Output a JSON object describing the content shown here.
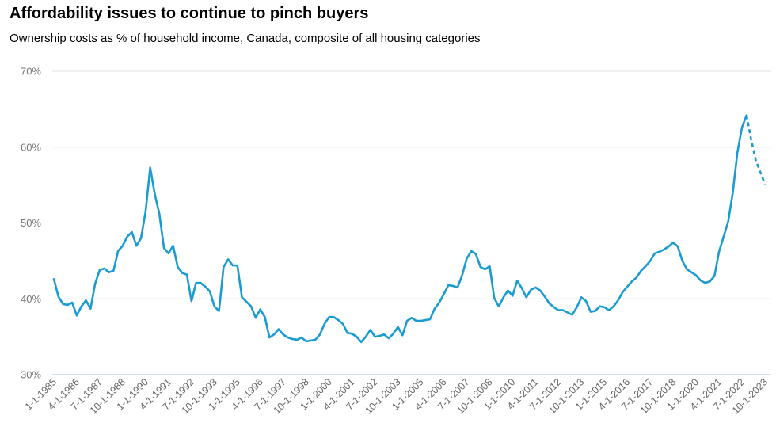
{
  "header": {
    "title": "Affordability issues to continue to pinch buyers",
    "subtitle": "Ownership costs as % of household income, Canada, composite of all housing categories"
  },
  "colors": {
    "line": "#1a9bd1",
    "grid": "#e0e0e0",
    "baseline": "#a7c8d8",
    "tick_text": "#666666"
  },
  "chart_data": {
    "type": "line",
    "title": "Affordability issues to continue to pinch buyers",
    "subtitle": "Ownership costs as % of household income, Canada, composite of all housing categories",
    "xlabel": "",
    "ylabel": "",
    "ylim": [
      30,
      70
    ],
    "yticks": [
      "30%",
      "40%",
      "50%",
      "60%",
      "70%"
    ],
    "ytick_values": [
      30,
      40,
      50,
      60,
      70
    ],
    "grid": true,
    "legend": "none",
    "x_tick_labels": [
      "1-1-1985",
      "4-1-1986",
      "7-1-1987",
      "10-1-1988",
      "1-1-1990",
      "4-1-1991",
      "7-1-1992",
      "10-1-1993",
      "1-1-1995",
      "4-1-1996",
      "7-1-1997",
      "10-1-1998",
      "1-1-2000",
      "4-1-2001",
      "7-1-2002",
      "10-1-2003",
      "1-1-2005",
      "4-1-2006",
      "7-1-2007",
      "10-1-2008",
      "1-1-2010",
      "4-1-2011",
      "7-1-2012",
      "10-1-2013",
      "1-1-2015",
      "4-1-2016",
      "7-1-2017",
      "10-1-2018",
      "1-1-2020",
      "4-1-2021",
      "7-1-2022",
      "10-1-2023"
    ],
    "x_start": "1-1-1985",
    "x_end": "10-1-2023",
    "series": [
      {
        "style": "solid",
        "points": [
          [
            "1-1-1985",
            42.6
          ],
          [
            "4-1-1985",
            40.3
          ],
          [
            "7-1-1985",
            39.3
          ],
          [
            "10-1-1985",
            39.2
          ],
          [
            "1-1-1986",
            39.5
          ],
          [
            "4-1-1986",
            37.8
          ],
          [
            "7-1-1986",
            39.0
          ],
          [
            "10-1-1986",
            39.8
          ],
          [
            "1-1-1987",
            38.7
          ],
          [
            "4-1-1987",
            42.0
          ],
          [
            "7-1-1987",
            43.8
          ],
          [
            "10-1-1987",
            44.0
          ],
          [
            "1-1-1988",
            43.5
          ],
          [
            "4-1-1988",
            43.7
          ],
          [
            "7-1-1988",
            46.3
          ],
          [
            "10-1-1988",
            47.0
          ],
          [
            "1-1-1989",
            48.2
          ],
          [
            "4-1-1989",
            48.8
          ],
          [
            "7-1-1989",
            47.0
          ],
          [
            "10-1-1989",
            48.0
          ],
          [
            "1-1-1990",
            51.5
          ],
          [
            "4-1-1990",
            57.3
          ],
          [
            "7-1-1990",
            53.8
          ],
          [
            "10-1-1990",
            51.2
          ],
          [
            "1-1-1991",
            46.7
          ],
          [
            "4-1-1991",
            46.0
          ],
          [
            "7-1-1991",
            47.0
          ],
          [
            "10-1-1991",
            44.2
          ],
          [
            "1-1-1992",
            43.4
          ],
          [
            "4-1-1992",
            43.2
          ],
          [
            "7-1-1992",
            39.7
          ],
          [
            "10-1-1992",
            42.1
          ],
          [
            "1-1-1993",
            42.1
          ],
          [
            "4-1-1993",
            41.6
          ],
          [
            "7-1-1993",
            41.0
          ],
          [
            "10-1-1993",
            39.0
          ],
          [
            "1-1-1994",
            38.4
          ],
          [
            "4-1-1994",
            44.2
          ],
          [
            "7-1-1994",
            45.2
          ],
          [
            "10-1-1994",
            44.4
          ],
          [
            "1-1-1995",
            44.4
          ],
          [
            "4-1-1995",
            40.2
          ],
          [
            "7-1-1995",
            39.6
          ],
          [
            "10-1-1995",
            39.0
          ],
          [
            "1-1-1996",
            37.5
          ],
          [
            "4-1-1996",
            38.6
          ],
          [
            "7-1-1996",
            37.6
          ],
          [
            "10-1-1996",
            34.9
          ],
          [
            "1-1-1997",
            35.3
          ],
          [
            "4-1-1997",
            36.0
          ],
          [
            "7-1-1997",
            35.3
          ],
          [
            "10-1-1997",
            34.9
          ],
          [
            "1-1-1998",
            34.7
          ],
          [
            "4-1-1998",
            34.6
          ],
          [
            "7-1-1998",
            34.9
          ],
          [
            "10-1-1998",
            34.4
          ],
          [
            "1-1-1999",
            34.5
          ],
          [
            "4-1-1999",
            34.6
          ],
          [
            "7-1-1999",
            35.3
          ],
          [
            "10-1-1999",
            36.7
          ],
          [
            "1-1-2000",
            37.6
          ],
          [
            "4-1-2000",
            37.6
          ],
          [
            "7-1-2000",
            37.2
          ],
          [
            "10-1-2000",
            36.7
          ],
          [
            "1-1-2001",
            35.5
          ],
          [
            "4-1-2001",
            35.4
          ],
          [
            "7-1-2001",
            35.0
          ],
          [
            "10-1-2001",
            34.3
          ],
          [
            "1-1-2002",
            35.0
          ],
          [
            "4-1-2002",
            35.9
          ],
          [
            "7-1-2002",
            35.0
          ],
          [
            "10-1-2002",
            35.1
          ],
          [
            "1-1-2003",
            35.3
          ],
          [
            "4-1-2003",
            34.8
          ],
          [
            "7-1-2003",
            35.4
          ],
          [
            "10-1-2003",
            36.3
          ],
          [
            "1-1-2004",
            35.2
          ],
          [
            "4-1-2004",
            37.1
          ],
          [
            "7-1-2004",
            37.5
          ],
          [
            "10-1-2004",
            37.1
          ],
          [
            "1-1-2005",
            37.1
          ],
          [
            "4-1-2005",
            37.2
          ],
          [
            "7-1-2005",
            37.3
          ],
          [
            "10-1-2005",
            38.7
          ],
          [
            "1-1-2006",
            39.5
          ],
          [
            "4-1-2006",
            40.6
          ],
          [
            "7-1-2006",
            41.8
          ],
          [
            "10-1-2006",
            41.7
          ],
          [
            "1-1-2007",
            41.5
          ],
          [
            "4-1-2007",
            43.1
          ],
          [
            "7-1-2007",
            45.3
          ],
          [
            "10-1-2007",
            46.3
          ],
          [
            "1-1-2008",
            45.9
          ],
          [
            "4-1-2008",
            44.2
          ],
          [
            "7-1-2008",
            43.9
          ],
          [
            "10-1-2008",
            44.3
          ],
          [
            "1-1-2009",
            40.1
          ],
          [
            "4-1-2009",
            39.0
          ],
          [
            "7-1-2009",
            40.2
          ],
          [
            "10-1-2009",
            41.1
          ],
          [
            "1-1-2010",
            40.4
          ],
          [
            "4-1-2010",
            42.4
          ],
          [
            "7-1-2010",
            41.4
          ],
          [
            "10-1-2010",
            40.2
          ],
          [
            "1-1-2011",
            41.2
          ],
          [
            "4-1-2011",
            41.5
          ],
          [
            "7-1-2011",
            41.1
          ],
          [
            "10-1-2011",
            40.3
          ],
          [
            "1-1-2012",
            39.4
          ],
          [
            "4-1-2012",
            38.9
          ],
          [
            "7-1-2012",
            38.5
          ],
          [
            "10-1-2012",
            38.5
          ],
          [
            "1-1-2013",
            38.2
          ],
          [
            "4-1-2013",
            37.9
          ],
          [
            "7-1-2013",
            38.9
          ],
          [
            "10-1-2013",
            40.2
          ],
          [
            "1-1-2014",
            39.7
          ],
          [
            "4-1-2014",
            38.3
          ],
          [
            "7-1-2014",
            38.4
          ],
          [
            "10-1-2014",
            39.0
          ],
          [
            "1-1-2015",
            38.9
          ],
          [
            "4-1-2015",
            38.5
          ],
          [
            "7-1-2015",
            39.0
          ],
          [
            "10-1-2015",
            39.8
          ],
          [
            "1-1-2016",
            40.9
          ],
          [
            "4-1-2016",
            41.6
          ],
          [
            "7-1-2016",
            42.3
          ],
          [
            "10-1-2016",
            42.8
          ],
          [
            "1-1-2017",
            43.7
          ],
          [
            "4-1-2017",
            44.3
          ],
          [
            "7-1-2017",
            45.0
          ],
          [
            "10-1-2017",
            46.0
          ],
          [
            "1-1-2018",
            46.2
          ],
          [
            "4-1-2018",
            46.5
          ],
          [
            "7-1-2018",
            46.9
          ],
          [
            "10-1-2018",
            47.4
          ],
          [
            "1-1-2019",
            46.9
          ],
          [
            "4-1-2019",
            45.0
          ],
          [
            "7-1-2019",
            43.9
          ],
          [
            "10-1-2019",
            43.5
          ],
          [
            "1-1-2020",
            43.1
          ],
          [
            "4-1-2020",
            42.4
          ],
          [
            "7-1-2020",
            42.1
          ],
          [
            "10-1-2020",
            42.3
          ],
          [
            "1-1-2021",
            43.0
          ],
          [
            "4-1-2021",
            46.2
          ],
          [
            "7-1-2021",
            48.2
          ],
          [
            "10-1-2021",
            50.2
          ],
          [
            "1-1-2022",
            54.0
          ],
          [
            "4-1-2022",
            59.3
          ],
          [
            "7-1-2022",
            62.6
          ],
          [
            "10-1-2022",
            64.2
          ]
        ]
      },
      {
        "style": "dashed",
        "points": [
          [
            "10-1-2022",
            64.2
          ],
          [
            "1-1-2023",
            61.0
          ],
          [
            "4-1-2023",
            58.3
          ],
          [
            "7-1-2023",
            56.7
          ],
          [
            "10-1-2023",
            55.1
          ]
        ]
      }
    ]
  }
}
